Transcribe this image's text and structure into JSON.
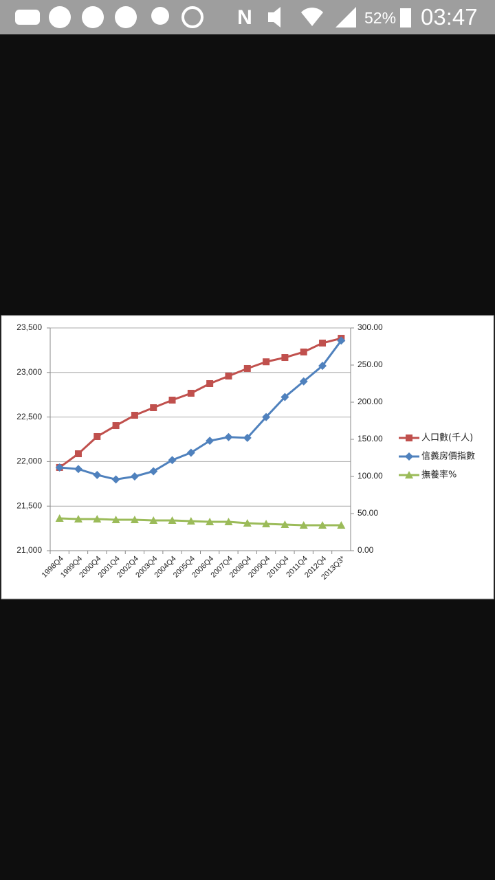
{
  "status_bar": {
    "battery": "52%",
    "time": "03:47"
  },
  "chart_data": {
    "type": "line",
    "categories": [
      "1998Q4",
      "1999Q4",
      "2000Q4",
      "2001Q4",
      "2002Q4",
      "2003Q4",
      "2004Q4",
      "2005Q4",
      "2006Q4",
      "2007Q4",
      "2008Q4",
      "2009Q4",
      "2010Q4",
      "2011Q4",
      "2012Q4",
      "2013Q3*"
    ],
    "ylim": [
      21000,
      23500
    ],
    "yticks": [
      {
        "value": 21000,
        "label": "21,000"
      },
      {
        "value": 21500,
        "label": "21,500"
      },
      {
        "value": 22000,
        "label": "22,000"
      },
      {
        "value": 22500,
        "label": "22,500"
      },
      {
        "value": 23000,
        "label": "23,000"
      },
      {
        "value": 23500,
        "label": "23,500"
      }
    ],
    "y2lim": [
      0,
      300
    ],
    "y2ticks": [
      {
        "value": 0,
        "label": "0.00"
      },
      {
        "value": 50,
        "label": "50.00"
      },
      {
        "value": 100,
        "label": "100.00"
      },
      {
        "value": 150,
        "label": "150.00"
      },
      {
        "value": 200,
        "label": "200.00"
      },
      {
        "value": 250,
        "label": "250.00"
      },
      {
        "value": 300,
        "label": "300.00"
      }
    ],
    "grid": true,
    "legend": "right",
    "series": [
      {
        "name": "人口數(千人)",
        "color": "#c0504d",
        "marker": "square",
        "axis": "y",
        "values": [
          21934,
          22088,
          22281,
          22404,
          22520,
          22605,
          22690,
          22767,
          22875,
          22960,
          23045,
          23120,
          23168,
          23230,
          23330,
          23384
        ]
      },
      {
        "name": "信義房價指數",
        "color": "#4f81bd",
        "marker": "diamond",
        "axis": "y2",
        "values": [
          112,
          110,
          102,
          96,
          100,
          107,
          122,
          132,
          148,
          153,
          152,
          180,
          207,
          228,
          249,
          283
        ]
      },
      {
        "name": "撫養率%",
        "color": "#9bbb59",
        "marker": "triangle",
        "axis": "y2",
        "values": [
          43.5,
          42.6,
          42.6,
          41.7,
          41.7,
          40.7,
          40.7,
          39.8,
          38.9,
          38.9,
          37,
          36.1,
          35.2,
          34.3,
          34.3,
          34.3
        ]
      }
    ]
  }
}
